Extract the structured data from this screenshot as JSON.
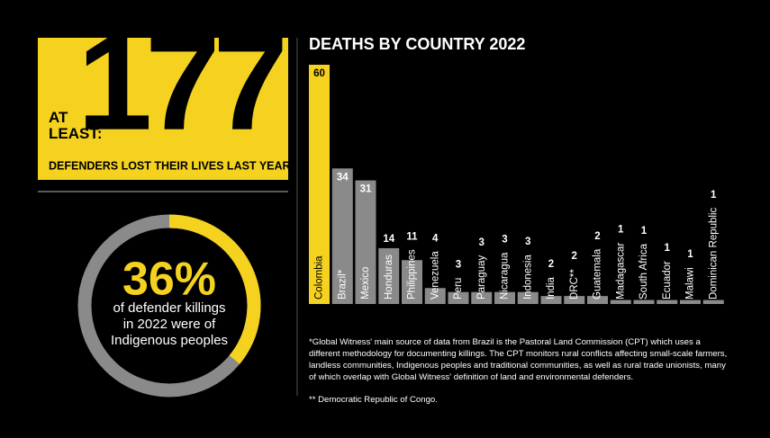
{
  "headline": {
    "prefix": "AT LEAST:",
    "value": 177,
    "caption": "DEFENDERS LOST THEIR LIVES LAST YEAR"
  },
  "indigenous": {
    "value": 36,
    "label": "36%",
    "caption": "of defender killings in 2022 were of Indigenous peoples",
    "color": "#f5d21f",
    "track_color": "#8a8a8a"
  },
  "chart_data": {
    "type": "bar",
    "title": "DEATHS BY COUNTRY 2022",
    "categories": [
      "Colombia",
      "Brazil*",
      "Mexico",
      "Honduras",
      "Philippines",
      "Venezuela",
      "Peru",
      "Paraguay",
      "Nicaragua",
      "Indonesia",
      "India",
      "DRC**",
      "Guatemala",
      "Madagascar",
      "South Africa",
      "Ecuador",
      "Malawi",
      "Dominican Republic"
    ],
    "values": [
      60,
      34,
      31,
      14,
      11,
      4,
      3,
      3,
      3,
      3,
      2,
      2,
      2,
      1,
      1,
      1,
      1,
      1
    ],
    "colors": [
      "#f5d21f",
      "#8a8a8a",
      "#8a8a8a",
      "#8a8a8a",
      "#8a8a8a",
      "#8a8a8a",
      "#8a8a8a",
      "#8a8a8a",
      "#8a8a8a",
      "#8a8a8a",
      "#8a8a8a",
      "#8a8a8a",
      "#8a8a8a",
      "#8a8a8a",
      "#8a8a8a",
      "#8a8a8a",
      "#8a8a8a",
      "#8a8a8a"
    ],
    "ylim": [
      0,
      60
    ]
  },
  "footnotes": [
    "*Global Witness' main source of data from Brazil is the Pastoral Land Commission (CPT) which uses a different methodology for documenting killings. The CPT monitors rural conflicts affecting small-scale farmers, landless communities, Indigenous peoples and traditional communities, as well as rural trade unionists, many of which overlap with Global Witness' definition of land and environmental defenders.",
    "** Democratic Republic of Congo."
  ]
}
